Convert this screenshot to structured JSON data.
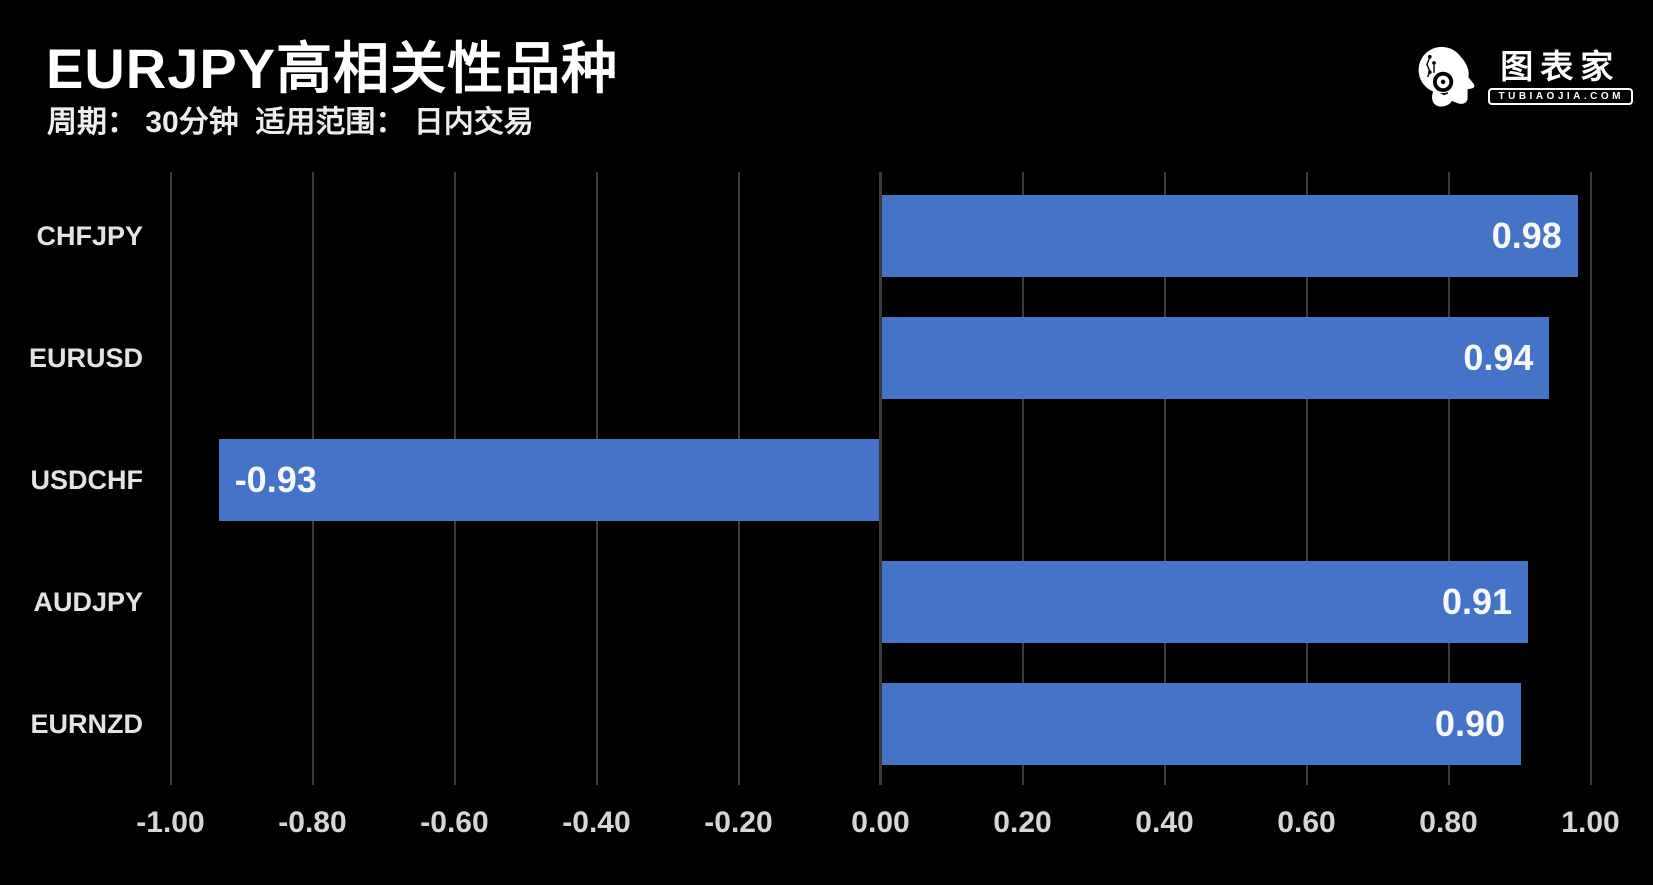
{
  "header": {
    "title": "EURJPY高相关性品种",
    "subtitle": "周期： 30分钟  适用范围： 日内交易"
  },
  "logo": {
    "brand": "图表家",
    "domain": "TUBIAOJIA.COM",
    "icon": "helmet-head-icon"
  },
  "colors": {
    "background": "#000000",
    "bar": "#4473C8",
    "grid": "#3c3c3c",
    "zero_line": "#3b3b3b",
    "title_text": "#ffffff",
    "category_text": "#e3e3e3",
    "tick_text": "#d6d6d6",
    "value_text": "#f8f8f8"
  },
  "chart_data": {
    "type": "bar",
    "orientation": "horizontal",
    "title": "EURJPY高相关性品种",
    "xlabel": "",
    "ylabel": "",
    "categories": [
      "CHFJPY",
      "EURUSD",
      "USDCHF",
      "AUDJPY",
      "EURNZD"
    ],
    "values": [
      0.98,
      0.94,
      -0.93,
      0.91,
      0.9
    ],
    "value_labels": [
      "0.98",
      "0.94",
      "-0.93",
      "0.91",
      "0.90"
    ],
    "xticks": [
      -1.0,
      -0.8,
      -0.6,
      -0.4,
      -0.2,
      0.0,
      0.2,
      0.4,
      0.6,
      0.8,
      1.0
    ],
    "xtick_labels": [
      "-1.00",
      "-0.80",
      "-0.60",
      "-0.40",
      "-0.20",
      "0.00",
      "0.20",
      "0.40",
      "0.60",
      "0.80",
      "1.00"
    ],
    "xlim": [
      -1.0,
      1.0
    ],
    "grid": true,
    "legend": false
  }
}
